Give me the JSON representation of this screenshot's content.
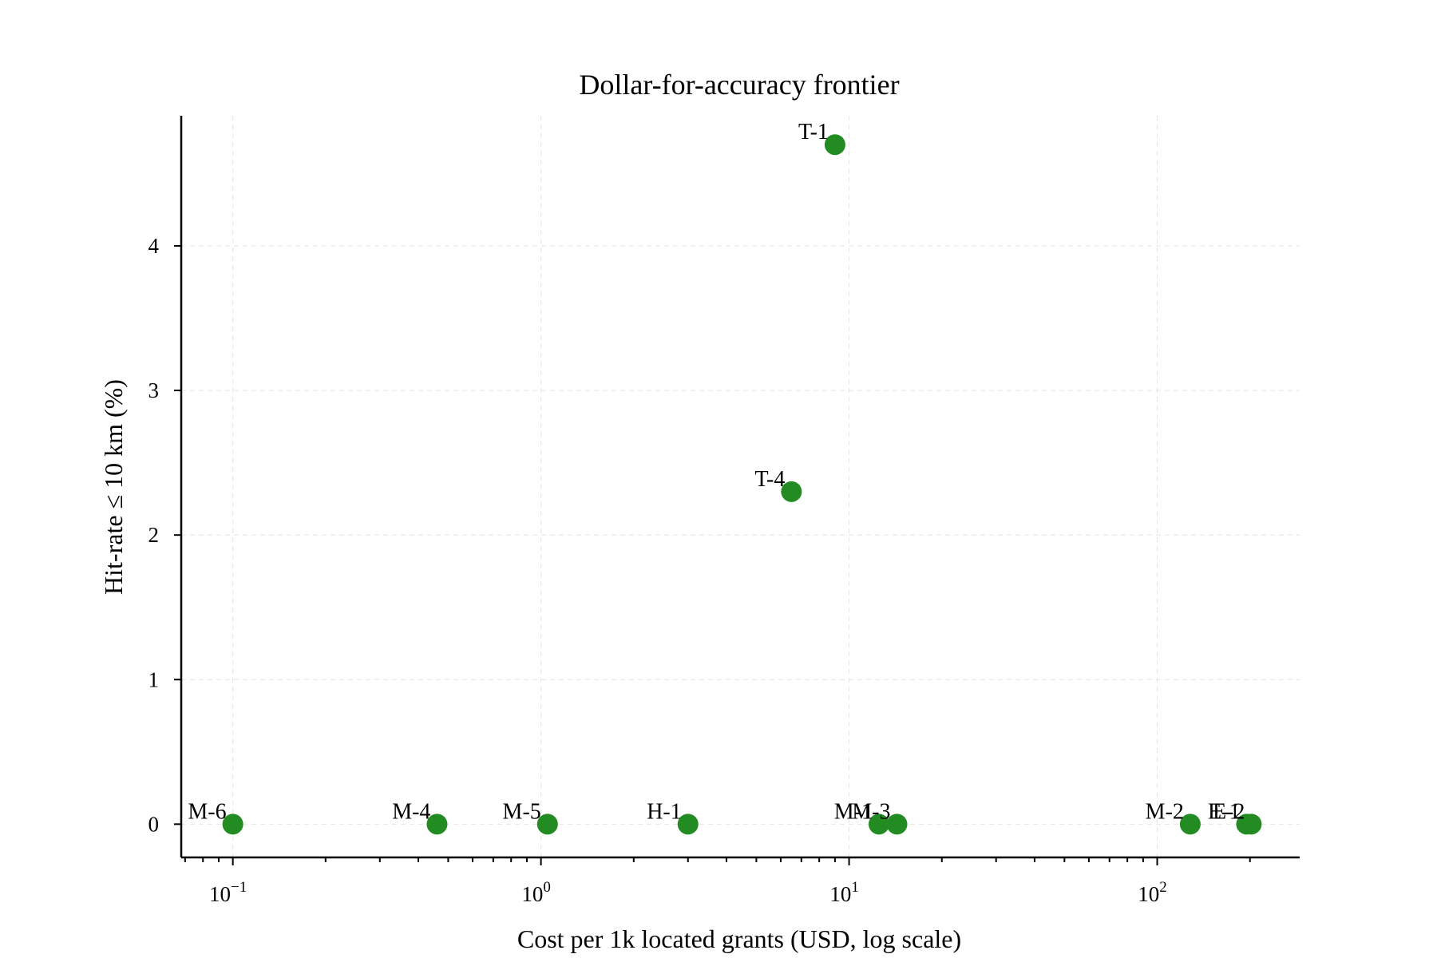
{
  "chart_data": {
    "type": "scatter",
    "title": "Dollar-for-accuracy frontier",
    "xlabel": "Cost per 1k located grants (USD, log scale)",
    "ylabel": "Hit-rate ≤ 10 km (%)",
    "x_scale": "log",
    "xlim": [
      0.068,
      290
    ],
    "ylim": [
      -0.23,
      4.9
    ],
    "x_major_ticks": [
      {
        "value": 0.1,
        "base": "10",
        "exp": "−1"
      },
      {
        "value": 1,
        "base": "10",
        "exp": "0"
      },
      {
        "value": 10,
        "base": "10",
        "exp": "1"
      },
      {
        "value": 100,
        "base": "10",
        "exp": "2"
      }
    ],
    "y_ticks": [
      {
        "value": 0,
        "label": "0"
      },
      {
        "value": 1,
        "label": "1"
      },
      {
        "value": 2,
        "label": "2"
      },
      {
        "value": 3,
        "label": "3"
      },
      {
        "value": 4,
        "label": "4"
      }
    ],
    "grid": true,
    "marker_color": "#228b22",
    "points": [
      {
        "label": "M-6",
        "x": 0.1,
        "y": 0
      },
      {
        "label": "M-4",
        "x": 0.46,
        "y": 0
      },
      {
        "label": "M-5",
        "x": 1.05,
        "y": 0
      },
      {
        "label": "H-1",
        "x": 3.0,
        "y": 0
      },
      {
        "label": "T-4",
        "x": 6.5,
        "y": 2.3
      },
      {
        "label": "T-1",
        "x": 9.0,
        "y": 4.7
      },
      {
        "label": "M-1",
        "x": 12.5,
        "y": 0
      },
      {
        "label": "M-3",
        "x": 14.3,
        "y": 0
      },
      {
        "label": "M-2",
        "x": 128,
        "y": 0
      },
      {
        "label": "E-1",
        "x": 195,
        "y": 0
      },
      {
        "label": "E-2",
        "x": 202,
        "y": 0
      }
    ]
  }
}
